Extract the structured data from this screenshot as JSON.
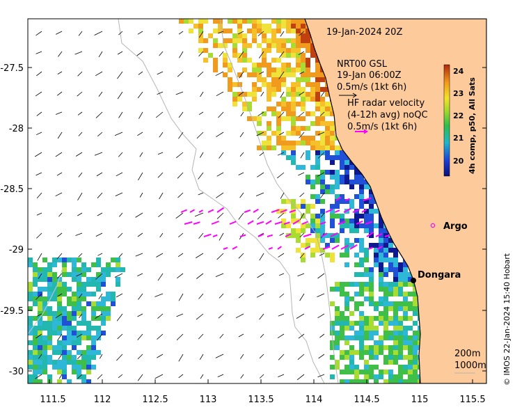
{
  "map": {
    "timestamp": "19-Jan-2024 20Z",
    "gsl_block": {
      "line1": "NRT00 GSL",
      "line2": "19-Jan 06:00Z",
      "line3": "0.5m/s (1kt 6h)"
    },
    "hf_block": {
      "line1": "HF radar velocity",
      "line2": "(4-12h avg) noQC",
      "line3": "0.5m/s (1kt 6h)"
    },
    "places": [
      {
        "name": "Dongara"
      },
      {
        "name": "Argo"
      }
    ],
    "isobaths": [
      "200m",
      "1000m"
    ],
    "credit": "© IMOS 22-Jan-2024 15:40 Hobart",
    "colorbar": {
      "label": "4h comp, p50, All Sats",
      "ticks": [
        "20",
        "21",
        "22",
        "23",
        "24"
      ],
      "range": [
        19.5,
        24.4
      ]
    },
    "x_ticks": [
      "111.5",
      "112",
      "112.5",
      "113",
      "113.5",
      "114",
      "114.5",
      "115",
      "115.5"
    ],
    "y_ticks": [
      "-27.5",
      "-28",
      "-28.5",
      "-29",
      "-29.5",
      "-30"
    ],
    "colors": {
      "land": "#fdcb9b",
      "sea": "#ffffff",
      "arrow_gsl": "#000000",
      "arrow_hf": "#ff00ff"
    }
  }
}
